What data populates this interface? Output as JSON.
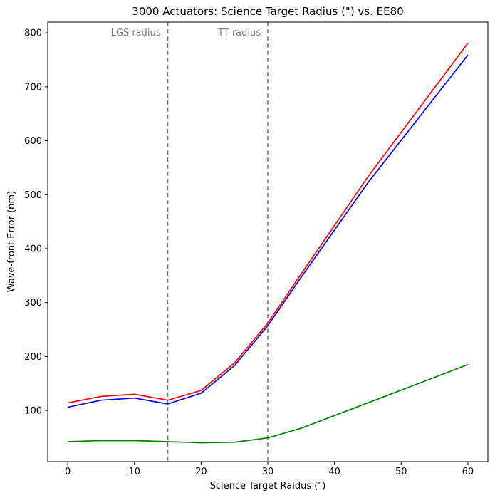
{
  "chart_data": {
    "type": "line",
    "title": "3000 Actuators: Science Target Radius (\") vs. EE80",
    "xlabel": "Science Target Raidus (\")",
    "ylabel": "Wave-front Error (nm)",
    "xlim": [
      -3,
      63
    ],
    "ylim": [
      5,
      820
    ],
    "xticks": [
      0,
      10,
      20,
      30,
      40,
      50,
      60
    ],
    "yticks": [
      100,
      200,
      300,
      400,
      500,
      600,
      700,
      800
    ],
    "grid": false,
    "x": [
      0,
      5,
      10,
      15,
      20,
      25,
      30,
      35,
      45,
      60
    ],
    "series": [
      {
        "color": "#ff0000",
        "values": [
          114,
          126,
          130,
          119,
          137,
          188,
          262,
          353,
          533,
          781
        ]
      },
      {
        "color": "#0000ff",
        "values": [
          106,
          119,
          123,
          112,
          132,
          183,
          257,
          347,
          522,
          759
        ]
      },
      {
        "color": "#008000",
        "values": [
          42,
          44,
          44,
          42,
          40,
          41,
          49,
          67,
          114,
          185
        ]
      }
    ],
    "vlines": [
      {
        "x": 15,
        "label": "LGS radius",
        "color": "#808080"
      },
      {
        "x": 30,
        "label": "TT radius",
        "color": "#808080"
      }
    ]
  }
}
